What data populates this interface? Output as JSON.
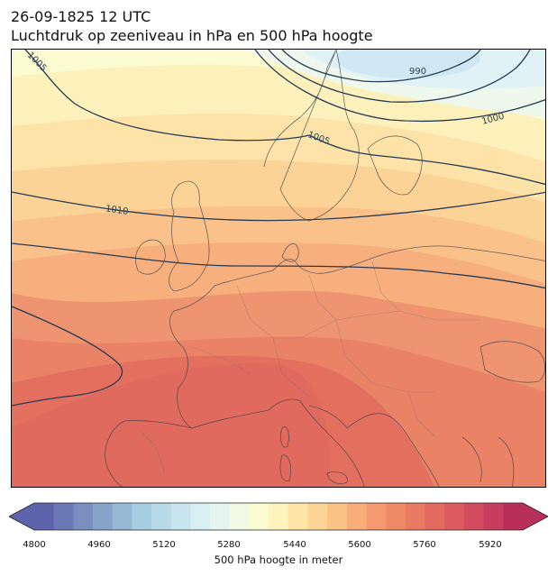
{
  "header": {
    "datetime": "26-09-1825 12 UTC",
    "subtitle": "Luchtdruk op zeeniveau in hPa en 500 hPa hoogte"
  },
  "isobar_labels": [
    "1005",
    "990",
    "1000",
    "1005",
    "1010"
  ],
  "colorbar": {
    "label": "500 hPa hoogte in meter",
    "ticks": [
      "4800",
      "4960",
      "5120",
      "5280",
      "5440",
      "5600",
      "5760",
      "5920"
    ],
    "range": [
      4800,
      5960
    ],
    "extend": "both",
    "colors": [
      "#5e64ac",
      "#6a78b6",
      "#7a8ec2",
      "#86a4ca",
      "#97b9d6",
      "#a8cee2",
      "#b8dbea",
      "#c8e5ef",
      "#d8eff3",
      "#e7f5f1",
      "#f3f9e4",
      "#fbfbd2",
      "#fdf3bd",
      "#fde5a8",
      "#fcd596",
      "#fbc386",
      "#f8ae78",
      "#f49a6e",
      "#ef8a66",
      "#ea7a61",
      "#e36a5f",
      "#dc5b5f",
      "#d24c5f",
      "#c73d5e",
      "#b92f5c"
    ]
  },
  "map": {
    "fill_colors": {
      "high_north": "#e3f3f8",
      "low_center": "#d2ecf5",
      "contour_line": "#243a55",
      "coast_line": "#3a3f48"
    }
  }
}
